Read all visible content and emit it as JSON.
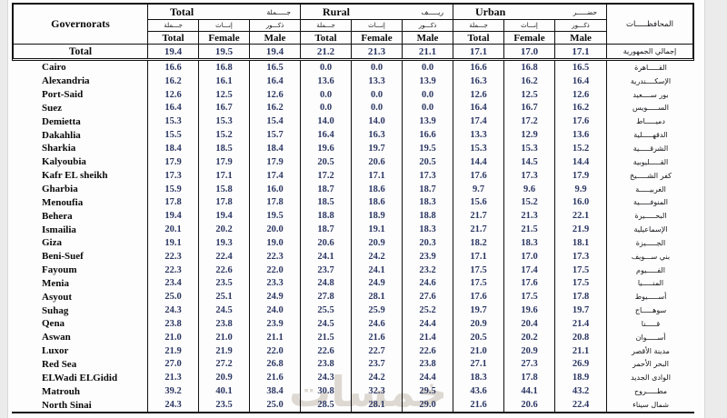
{
  "watermark": "خمسات",
  "colors": {
    "number_text": "#2c3763",
    "header_text": "#0a0a0a",
    "border": "#101010",
    "page_margin": "#ebebeb"
  },
  "table": {
    "corner_label": "Governorats",
    "governorate_col_header_ar": "المحافظـــــات",
    "groups": [
      {
        "en": "Total",
        "ar": "جـــــملة"
      },
      {
        "en": "Rural",
        "ar": "ريـــــف"
      },
      {
        "en": "Urban",
        "ar": "حضـــــر"
      }
    ],
    "subheaders_ar": [
      "جـــملة",
      "إنـــاث",
      "ذكـــور"
    ],
    "subheaders_en": [
      "Total",
      "Female",
      "Male"
    ],
    "total_row": {
      "label": "Total",
      "ar": "إجمالي الجمهورية",
      "values": [
        "19.4",
        "19.5",
        "19.4",
        "21.2",
        "21.3",
        "21.1",
        "17.1",
        "17.0",
        "17.1"
      ]
    },
    "rows": [
      {
        "label": "Cairo",
        "ar": "القـــــاهرة",
        "values": [
          "16.6",
          "16.8",
          "16.5",
          "0.0",
          "0.0",
          "0.0",
          "16.6",
          "16.8",
          "16.5"
        ]
      },
      {
        "label": "Alexandria",
        "ar": "الإسكــــندرية",
        "values": [
          "16.2",
          "16.1",
          "16.4",
          "13.6",
          "13.3",
          "13.9",
          "16.3",
          "16.2",
          "16.4"
        ]
      },
      {
        "label": "Port-Said",
        "ar": "بور ســــعيد",
        "values": [
          "12.6",
          "12.5",
          "12.6",
          "0.0",
          "0.0",
          "0.0",
          "12.6",
          "12.5",
          "12.6"
        ]
      },
      {
        "label": "Suez",
        "ar": "الســـــويس",
        "values": [
          "16.4",
          "16.7",
          "16.2",
          "0.0",
          "0.0",
          "0.0",
          "16.4",
          "16.7",
          "16.2"
        ]
      },
      {
        "label": "Demietta",
        "ar": "دميـــــاط",
        "values": [
          "15.3",
          "15.3",
          "15.4",
          "14.0",
          "14.0",
          "13.9",
          "17.4",
          "17.2",
          "17.6"
        ]
      },
      {
        "label": "Dakahlia",
        "ar": "الدقهـــــلية",
        "values": [
          "15.5",
          "15.2",
          "15.7",
          "16.4",
          "16.3",
          "16.6",
          "13.3",
          "12.9",
          "13.6"
        ]
      },
      {
        "label": "Sharkia",
        "ar": "الشرقـــــية",
        "values": [
          "18.4",
          "18.5",
          "18.4",
          "19.6",
          "19.7",
          "19.5",
          "15.3",
          "15.3",
          "15.2"
        ]
      },
      {
        "label": "Kalyoubia",
        "ar": "القـــــليوبية",
        "values": [
          "17.9",
          "17.9",
          "17.9",
          "20.5",
          "20.6",
          "20.5",
          "14.4",
          "14.5",
          "14.4"
        ]
      },
      {
        "label": "Kafr EL sheikh",
        "ar": "كفر الشـــــيخ",
        "values": [
          "17.3",
          "17.1",
          "17.4",
          "17.2",
          "17.1",
          "17.3",
          "17.6",
          "17.3",
          "17.9"
        ]
      },
      {
        "label": "Gharbia",
        "ar": "الغربيـــــة",
        "values": [
          "15.9",
          "15.8",
          "16.0",
          "18.7",
          "18.6",
          "18.7",
          "9.7",
          "9.6",
          "9.9"
        ]
      },
      {
        "label": "Menoufia",
        "ar": "المنوفـــــية",
        "values": [
          "17.8",
          "17.8",
          "17.8",
          "18.5",
          "18.6",
          "18.3",
          "15.6",
          "15.2",
          "16.0"
        ]
      },
      {
        "label": "Behera",
        "ar": "البحـــــيرة",
        "values": [
          "19.4",
          "19.4",
          "19.5",
          "18.8",
          "18.9",
          "18.8",
          "21.7",
          "21.3",
          "22.1"
        ]
      },
      {
        "label": "Ismailia",
        "ar": "الإسماعيلية",
        "values": [
          "20.1",
          "20.2",
          "20.0",
          "18.7",
          "19.1",
          "18.3",
          "21.7",
          "21.5",
          "21.9"
        ]
      },
      {
        "label": "Giza",
        "ar": "الجـــــيزة",
        "values": [
          "19.1",
          "19.3",
          "19.0",
          "20.6",
          "20.9",
          "20.3",
          "18.2",
          "18.3",
          "18.1"
        ]
      },
      {
        "label": "Beni-Suef",
        "ar": "بني ســـويف",
        "values": [
          "22.3",
          "22.4",
          "22.3",
          "24.1",
          "24.2",
          "23.9",
          "17.1",
          "17.0",
          "17.3"
        ]
      },
      {
        "label": "Fayoum",
        "ar": "الفـــــيوم",
        "values": [
          "22.3",
          "22.6",
          "22.0",
          "23.7",
          "24.1",
          "23.2",
          "17.5",
          "17.4",
          "17.5"
        ]
      },
      {
        "label": "Menia",
        "ar": "المنـــــيا",
        "values": [
          "23.4",
          "23.5",
          "23.3",
          "24.8",
          "24.9",
          "24.6",
          "17.5",
          "17.6",
          "17.5"
        ]
      },
      {
        "label": "Asyout",
        "ar": "أســـــيوط",
        "values": [
          "25.0",
          "25.1",
          "24.9",
          "27.8",
          "28.1",
          "27.6",
          "17.6",
          "17.5",
          "17.8"
        ]
      },
      {
        "label": "Suhag",
        "ar": "سوهـــــاج",
        "values": [
          "24.3",
          "24.5",
          "24.0",
          "25.5",
          "25.9",
          "25.2",
          "19.7",
          "19.6",
          "19.7"
        ]
      },
      {
        "label": "Qena",
        "ar": "قـــــنا",
        "values": [
          "23.8",
          "23.8",
          "23.9",
          "24.5",
          "24.6",
          "24.4",
          "20.9",
          "20.4",
          "21.4"
        ]
      },
      {
        "label": "Aswan",
        "ar": "أســـــوان",
        "values": [
          "21.0",
          "21.0",
          "21.1",
          "21.5",
          "21.6",
          "21.4",
          "20.5",
          "20.2",
          "20.8"
        ]
      },
      {
        "label": "Luxor",
        "ar": "مدينة الأقصر",
        "values": [
          "21.9",
          "21.9",
          "22.0",
          "22.6",
          "22.7",
          "22.6",
          "21.0",
          "20.9",
          "21.1"
        ]
      },
      {
        "label": "Red Sea",
        "ar": "البحر الأحمر",
        "values": [
          "27.0",
          "27.2",
          "26.8",
          "23.8",
          "23.7",
          "23.8",
          "27.1",
          "27.3",
          "26.9"
        ]
      },
      {
        "label": "ELWadi ELGidid",
        "ar": "الوادى الجديد",
        "values": [
          "21.3",
          "20.9",
          "21.6",
          "24.3",
          "24.2",
          "24.4",
          "18.3",
          "17.8",
          "18.9"
        ]
      },
      {
        "label": "Matrouh",
        "ar": "مطـــــروح",
        "values": [
          "39.2",
          "40.1",
          "38.4",
          "30.8",
          "32.3",
          "29.5",
          "43.6",
          "44.1",
          "43.2"
        ]
      },
      {
        "label": "North Sinai",
        "ar": "شمال سيناء",
        "values": [
          "24.3",
          "23.5",
          "25.0",
          "28.5",
          "28.1",
          "29.0",
          "21.6",
          "20.6",
          "22.4"
        ]
      }
    ]
  }
}
